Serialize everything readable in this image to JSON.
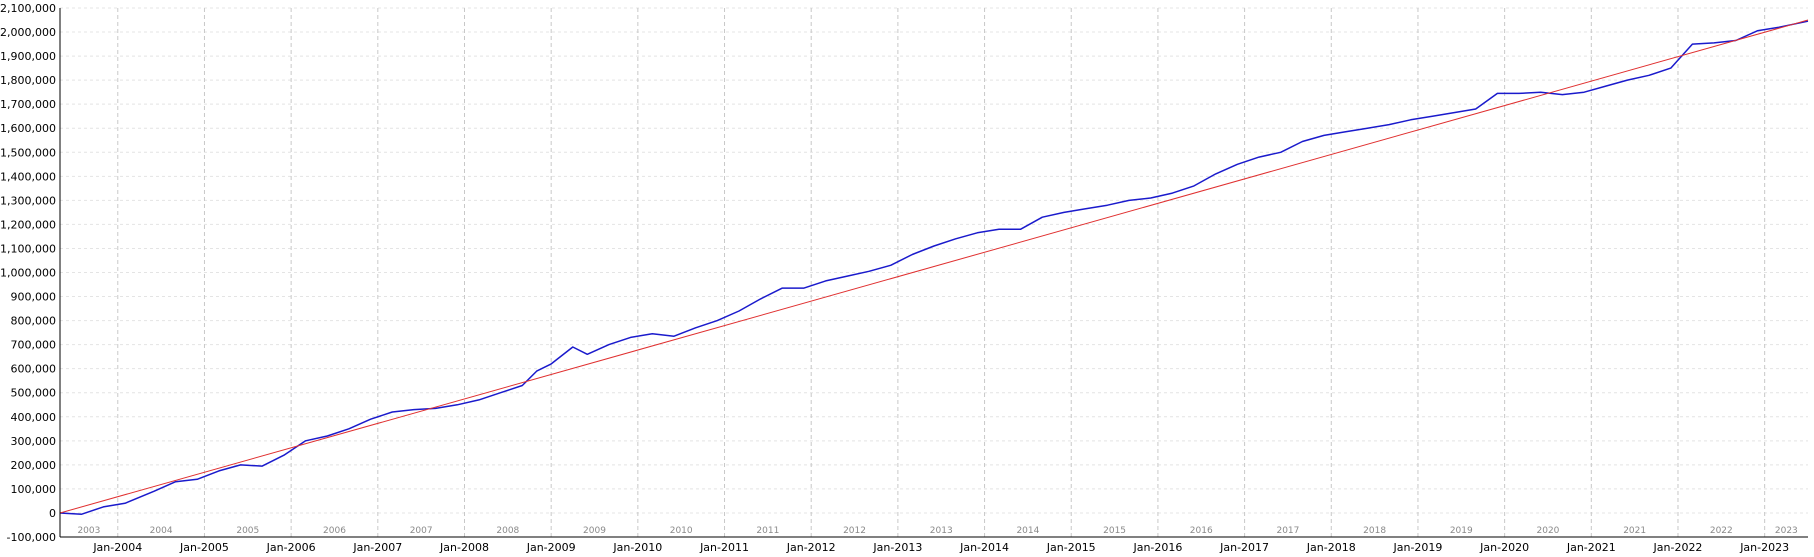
{
  "chart_data": {
    "type": "line",
    "title": "",
    "xlabel": "",
    "ylabel": "",
    "ylim": [
      -100000,
      2100000
    ],
    "xlim": [
      "2003-05",
      "2023-07"
    ],
    "y_ticks": [
      "-100,000",
      "0",
      "100,000",
      "200,000",
      "300,000",
      "400,000",
      "500,000",
      "600,000",
      "700,000",
      "800,000",
      "900,000",
      "1,000,000",
      "1,100,000",
      "1,200,000",
      "1,300,000",
      "1,400,000",
      "1,500,000",
      "1,600,000",
      "1,700,000",
      "1,800,000",
      "1,900,000",
      "2,000,000",
      "2,100,000"
    ],
    "y_tick_values": [
      -100000,
      0,
      100000,
      200000,
      300000,
      400000,
      500000,
      600000,
      700000,
      800000,
      900000,
      1000000,
      1100000,
      1200000,
      1300000,
      1400000,
      1500000,
      1600000,
      1700000,
      1800000,
      1900000,
      2000000,
      2100000
    ],
    "x_ticks": [
      "Jan-2004",
      "Jan-2005",
      "Jan-2006",
      "Jan-2007",
      "Jan-2008",
      "Jan-2009",
      "Jan-2010",
      "Jan-2011",
      "Jan-2012",
      "Jan-2013",
      "Jan-2014",
      "Jan-2015",
      "Jan-2016",
      "Jan-2017",
      "Jan-2018",
      "Jan-2019",
      "Jan-2020",
      "Jan-2021",
      "Jan-2022",
      "Jan-2023"
    ],
    "x_tick_years": [
      2004,
      2005,
      2006,
      2007,
      2008,
      2009,
      2010,
      2011,
      2012,
      2013,
      2014,
      2015,
      2016,
      2017,
      2018,
      2019,
      2020,
      2021,
      2022,
      2023
    ],
    "year_labels": [
      "2003",
      "2004",
      "2005",
      "2006",
      "2007",
      "2008",
      "2009",
      "2010",
      "2011",
      "2012",
      "2013",
      "2014",
      "2015",
      "2016",
      "2017",
      "2018",
      "2019",
      "2020",
      "2021",
      "2022",
      "2023"
    ],
    "grid": true,
    "series": [
      {
        "color": "#1a1acc",
        "x": [
          "2003-05",
          "2003-08",
          "2003-11",
          "2004-02",
          "2004-06",
          "2004-09",
          "2004-12",
          "2005-03",
          "2005-06",
          "2005-09",
          "2005-12",
          "2006-03",
          "2006-06",
          "2006-09",
          "2006-12",
          "2007-03",
          "2007-06",
          "2007-09",
          "2007-12",
          "2008-03",
          "2008-06",
          "2008-09",
          "2008-11",
          "2009-01",
          "2009-04",
          "2009-06",
          "2009-09",
          "2009-12",
          "2010-03",
          "2010-06",
          "2010-09",
          "2010-12",
          "2011-03",
          "2011-06",
          "2011-09",
          "2011-12",
          "2012-03",
          "2012-06",
          "2012-09",
          "2012-12",
          "2013-03",
          "2013-06",
          "2013-09",
          "2013-12",
          "2014-03",
          "2014-06",
          "2014-09",
          "2014-12",
          "2015-03",
          "2015-06",
          "2015-09",
          "2015-12",
          "2016-03",
          "2016-06",
          "2016-09",
          "2016-12",
          "2017-03",
          "2017-06",
          "2017-09",
          "2017-12",
          "2018-03",
          "2018-06",
          "2018-09",
          "2018-12",
          "2019-03",
          "2019-06",
          "2019-09",
          "2019-12",
          "2020-03",
          "2020-06",
          "2020-09",
          "2020-12",
          "2021-03",
          "2021-06",
          "2021-09",
          "2021-12",
          "2022-03",
          "2022-06",
          "2022-09",
          "2022-12",
          "2023-03",
          "2023-07"
        ],
        "values": [
          0,
          -5000,
          25000,
          40000,
          90000,
          130000,
          140000,
          175000,
          200000,
          195000,
          240000,
          300000,
          320000,
          350000,
          390000,
          420000,
          430000,
          435000,
          450000,
          470000,
          500000,
          530000,
          590000,
          620000,
          690000,
          660000,
          700000,
          730000,
          745000,
          735000,
          770000,
          800000,
          840000,
          890000,
          935000,
          935000,
          965000,
          985000,
          1005000,
          1030000,
          1075000,
          1110000,
          1140000,
          1165000,
          1180000,
          1180000,
          1230000,
          1250000,
          1265000,
          1280000,
          1300000,
          1310000,
          1330000,
          1360000,
          1410000,
          1450000,
          1480000,
          1500000,
          1545000,
          1570000,
          1585000,
          1600000,
          1615000,
          1635000,
          1650000,
          1665000,
          1680000,
          1745000,
          1745000,
          1750000,
          1740000,
          1750000,
          1775000,
          1800000,
          1820000,
          1850000,
          1950000,
          1955000,
          1965000,
          2005000,
          2020000,
          2045000
        ],
        "line_width": 1.5
      },
      {
        "color": "#e03030",
        "x": [
          "2003-05",
          "2023-07"
        ],
        "values": [
          0,
          2050000
        ],
        "line_width": 1
      }
    ]
  }
}
